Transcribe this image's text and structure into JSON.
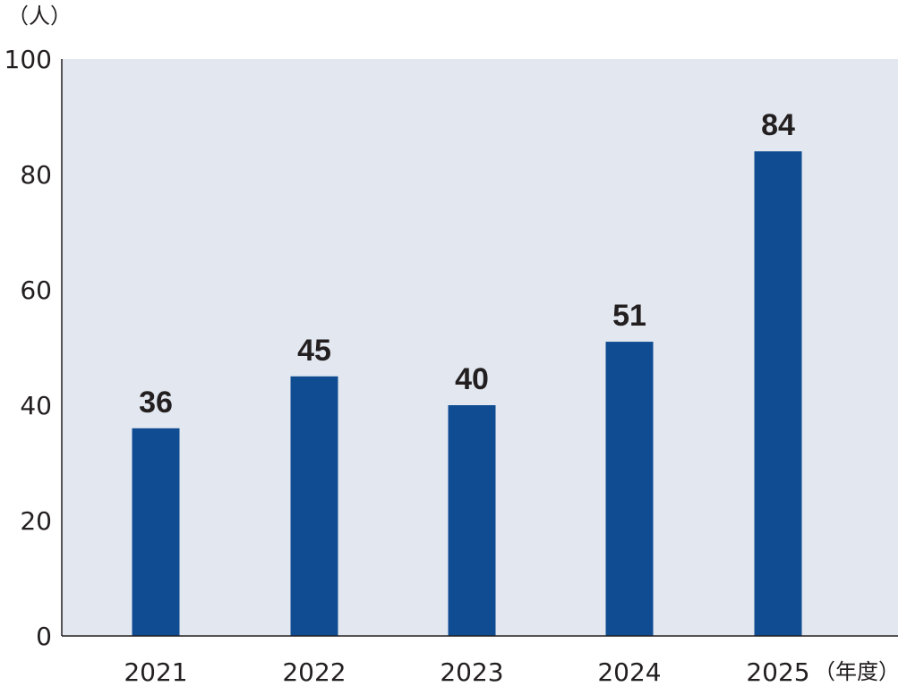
{
  "chart_data": {
    "type": "bar",
    "categories": [
      "2021",
      "2022",
      "2023",
      "2024",
      "2025"
    ],
    "values": [
      36,
      45,
      40,
      51,
      84
    ],
    "data_labels": [
      "36",
      "45",
      "40",
      "51",
      "84"
    ],
    "y_ticks": [
      "0",
      "20",
      "40",
      "60",
      "80",
      "100"
    ],
    "ylim": [
      0,
      100
    ],
    "ylabel": "（人）",
    "xlabel": "（年度）",
    "grid": false,
    "legend": "none",
    "colors": {
      "bar": "#0f4c92",
      "plot_background": "#e3e8f0",
      "axis": "#231f20"
    }
  }
}
